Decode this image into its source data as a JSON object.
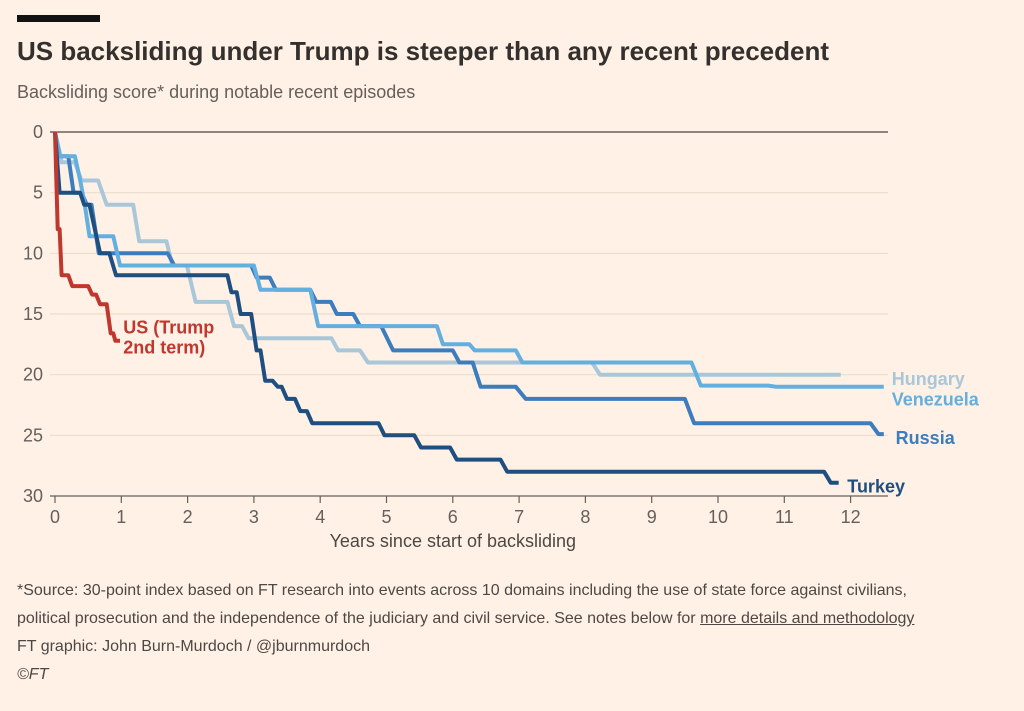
{
  "header": {
    "title": "US backsliding under Trump is steeper than any recent precedent",
    "subtitle": "Backsliding score* during notable recent episodes"
  },
  "chart_data": {
    "type": "line",
    "title": "US backsliding under Trump is steeper than any recent precedent",
    "subtitle": "Backsliding score* during notable recent episodes",
    "xlabel": "Years since start of backsliding",
    "ylabel": "Backsliding score",
    "x_ticks": [
      0,
      1,
      2,
      3,
      4,
      5,
      6,
      7,
      8,
      9,
      10,
      11,
      12
    ],
    "y_ticks": [
      0,
      5,
      10,
      15,
      20,
      25,
      30
    ],
    "xlim": [
      0,
      12.6
    ],
    "ylim": [
      0,
      30
    ],
    "y_inverted": true,
    "grid": "horizontal-faint",
    "legend_position": "right-edge-labels",
    "colors": {
      "background": "#FFF1E5",
      "axis": "#66605C",
      "grid_faint": "#ECDCCB",
      "grid_zero": "#66605B"
    },
    "series": [
      {
        "name": "Hungary",
        "color": "#A9C7D9",
        "label": "Hungary",
        "label_anchor": {
          "year": 12.62,
          "score": 20.85
        },
        "points": [
          [
            0,
            0
          ],
          [
            0.1,
            2.5
          ],
          [
            0.3,
            2.5
          ],
          [
            0.4,
            4
          ],
          [
            0.65,
            4
          ],
          [
            0.78,
            6
          ],
          [
            1.18,
            6
          ],
          [
            1.27,
            9
          ],
          [
            1.68,
            9
          ],
          [
            1.77,
            11
          ],
          [
            1.99,
            11
          ],
          [
            2.12,
            14
          ],
          [
            2.6,
            14
          ],
          [
            2.7,
            16
          ],
          [
            2.82,
            16
          ],
          [
            2.92,
            17
          ],
          [
            4.17,
            17
          ],
          [
            4.27,
            18
          ],
          [
            4.6,
            18
          ],
          [
            4.72,
            19
          ],
          [
            8.1,
            19
          ],
          [
            8.22,
            20
          ],
          [
            11.85,
            20
          ]
        ]
      },
      {
        "name": "Russia",
        "color": "#3D7DBE",
        "label": "Russia",
        "label_anchor": {
          "year": 12.68,
          "score": 25.7
        },
        "points": [
          [
            0,
            0
          ],
          [
            0.05,
            2
          ],
          [
            0.2,
            2
          ],
          [
            0.28,
            5
          ],
          [
            0.4,
            5
          ],
          [
            0.48,
            6
          ],
          [
            0.55,
            6
          ],
          [
            0.66,
            10
          ],
          [
            1.7,
            10
          ],
          [
            1.8,
            11
          ],
          [
            2.96,
            11
          ],
          [
            3.04,
            12
          ],
          [
            3.24,
            12
          ],
          [
            3.33,
            13
          ],
          [
            3.85,
            13
          ],
          [
            3.94,
            14
          ],
          [
            4.16,
            14
          ],
          [
            4.25,
            15
          ],
          [
            4.5,
            15
          ],
          [
            4.6,
            16
          ],
          [
            4.92,
            16
          ],
          [
            5.1,
            18
          ],
          [
            6.0,
            18
          ],
          [
            6.1,
            19
          ],
          [
            6.3,
            19
          ],
          [
            6.42,
            21
          ],
          [
            6.95,
            21
          ],
          [
            7.1,
            22
          ],
          [
            9.5,
            22
          ],
          [
            9.64,
            24
          ],
          [
            12.3,
            24
          ],
          [
            12.42,
            24.9
          ],
          [
            12.5,
            24.9
          ]
        ]
      },
      {
        "name": "Venezuela",
        "color": "#62AFE0",
        "label": "Venezuela",
        "label_anchor": {
          "year": 12.62,
          "score": 22.55
        },
        "points": [
          [
            0,
            0
          ],
          [
            0.08,
            2
          ],
          [
            0.3,
            2
          ],
          [
            0.38,
            4
          ],
          [
            0.45,
            6
          ],
          [
            0.52,
            8.6
          ],
          [
            0.88,
            8.6
          ],
          [
            0.98,
            11
          ],
          [
            3.0,
            11
          ],
          [
            3.1,
            13
          ],
          [
            3.85,
            13
          ],
          [
            3.97,
            16
          ],
          [
            5.76,
            16
          ],
          [
            5.85,
            17.5
          ],
          [
            6.25,
            17.5
          ],
          [
            6.33,
            18
          ],
          [
            6.95,
            18
          ],
          [
            7.05,
            19
          ],
          [
            9.6,
            19
          ],
          [
            9.74,
            20.9
          ],
          [
            10.76,
            20.9
          ],
          [
            10.88,
            21
          ],
          [
            12.5,
            21
          ]
        ]
      },
      {
        "name": "Turkey",
        "color": "#1F4E80",
        "label": "Turkey",
        "label_anchor": {
          "year": 11.95,
          "score": 29.7
        },
        "points": [
          [
            0,
            0
          ],
          [
            0.07,
            5
          ],
          [
            0.38,
            5
          ],
          [
            0.44,
            6
          ],
          [
            0.52,
            6
          ],
          [
            0.68,
            10
          ],
          [
            0.82,
            10
          ],
          [
            0.92,
            11.8
          ],
          [
            2.6,
            11.8
          ],
          [
            2.66,
            13.2
          ],
          [
            2.74,
            13.2
          ],
          [
            2.8,
            15
          ],
          [
            2.96,
            15
          ],
          [
            3.04,
            18
          ],
          [
            3.1,
            18
          ],
          [
            3.17,
            20.5
          ],
          [
            3.28,
            20.5
          ],
          [
            3.36,
            21
          ],
          [
            3.42,
            21
          ],
          [
            3.5,
            22
          ],
          [
            3.62,
            22
          ],
          [
            3.7,
            23
          ],
          [
            3.8,
            23
          ],
          [
            3.88,
            24
          ],
          [
            4.88,
            24
          ],
          [
            4.97,
            25
          ],
          [
            5.42,
            25
          ],
          [
            5.52,
            26
          ],
          [
            5.96,
            26
          ],
          [
            6.06,
            27
          ],
          [
            6.72,
            27
          ],
          [
            6.82,
            28
          ],
          [
            11.6,
            28
          ],
          [
            11.7,
            28.9
          ],
          [
            11.82,
            28.9
          ]
        ]
      },
      {
        "name": "US (Trump 2nd term)",
        "color": "#C0372E",
        "label": "US (Trump 2nd term)",
        "label_lines": [
          "US (Trump",
          "2nd term)"
        ],
        "label_anchor": {
          "year": 1.03,
          "score": 16.6
        },
        "points": [
          [
            0,
            0
          ],
          [
            0.04,
            8
          ],
          [
            0.07,
            8
          ],
          [
            0.1,
            11.8
          ],
          [
            0.2,
            11.8
          ],
          [
            0.26,
            12.7
          ],
          [
            0.5,
            12.7
          ],
          [
            0.56,
            13.4
          ],
          [
            0.62,
            13.4
          ],
          [
            0.68,
            14.2
          ],
          [
            0.78,
            14.2
          ],
          [
            0.84,
            16.6
          ],
          [
            0.88,
            16.6
          ],
          [
            0.91,
            17.2
          ],
          [
            0.98,
            17.2
          ]
        ]
      }
    ]
  },
  "footer": {
    "note_line1": "*Source: 30-point index based on FT research into events across 10 domains including the use of state force against civilians,",
    "note_line2_prefix": "political prosecution and the independence of the judiciary and civil service. See notes below for ",
    "note_link": "more details and methodology",
    "credit": "FT graphic: John Burn-Murdoch / @jburnmurdoch",
    "copyright": "©FT"
  }
}
